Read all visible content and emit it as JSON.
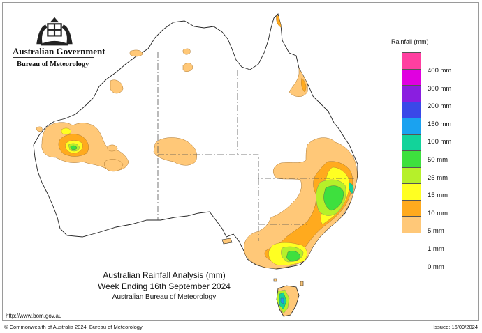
{
  "header": {
    "government": "Australian Government",
    "bureau": "Bureau of Meteorology",
    "crest_icon": "coat-of-arms-icon"
  },
  "map": {
    "title": "Australian Rainfall Analysis (mm)",
    "period": "Week Ending 16th September 2024",
    "source": "Australian Bureau of Meteorology"
  },
  "legend": {
    "title": "Rainfall (mm)",
    "items": [
      {
        "label": "400 mm",
        "color": "#ff3fa0"
      },
      {
        "label": "300 mm",
        "color": "#e000e0"
      },
      {
        "label": "200 mm",
        "color": "#8a1ee0"
      },
      {
        "label": "150 mm",
        "color": "#3a48e8"
      },
      {
        "label": "100 mm",
        "color": "#1aa2f0"
      },
      {
        "label": "50 mm",
        "color": "#12d39a"
      },
      {
        "label": "25 mm",
        "color": "#3ee03e"
      },
      {
        "label": "15 mm",
        "color": "#b6f02a"
      },
      {
        "label": "10 mm",
        "color": "#ffff22"
      },
      {
        "label": "5 mm",
        "color": "#ffaa1e"
      },
      {
        "label": "1 mm",
        "color": "#ffc878"
      },
      {
        "label": "0 mm",
        "color": "#ffffff"
      }
    ]
  },
  "footer": {
    "url": "http://www.bom.gov.au",
    "copyright": "© Commonwealth of Australia 2024, Bureau of Meteorology",
    "issued": "Issued: 16/09/2024"
  }
}
